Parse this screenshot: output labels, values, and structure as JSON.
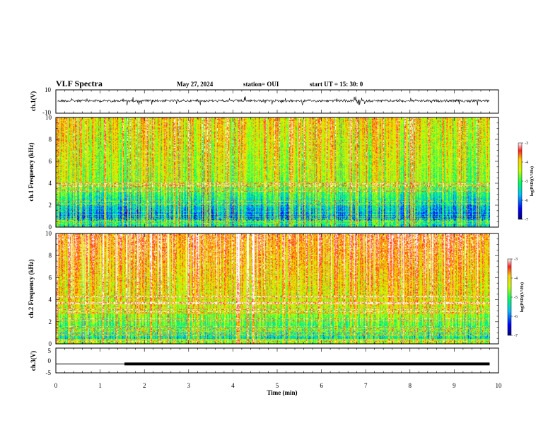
{
  "header": {
    "title": "VLF Spectra",
    "date": "May 27, 2024",
    "station": "station= OUI",
    "start_ut": "start  UT  =   15: 30: 0"
  },
  "chart_data": [
    {
      "type": "line",
      "panel": "ch1-waveform",
      "ylabel": "ch.1(V)",
      "ylim": [
        -10,
        10
      ],
      "ytick_labels": [
        "10",
        "-10"
      ],
      "x_range_min": [
        0,
        9.8
      ],
      "baseline_value": 0,
      "description_values": "dense noisy waveform around 0 V with spikes to about ±6 V"
    },
    {
      "type": "heatmap",
      "panel": "ch1-spectrogram",
      "ylabel": "ch.1 Frequency (kHz)",
      "xlim": [
        0,
        10
      ],
      "ylim": [
        0,
        10
      ],
      "data_end_min": 9.8,
      "ytick_labels": [
        "0",
        "2",
        "4",
        "6",
        "8",
        "10"
      ],
      "colorbar": {
        "min": -7,
        "max": -3,
        "ticks": [
          "-3",
          "-4",
          "-5",
          "-6",
          "-7"
        ],
        "label": "log(PSD)(V²/Hz)"
      }
    },
    {
      "type": "heatmap",
      "panel": "ch2-spectrogram",
      "ylabel": "ch.2 Frequency (kHz)",
      "xlim": [
        0,
        10
      ],
      "ylim": [
        0,
        10
      ],
      "data_end_min": 9.8,
      "ytick_labels": [
        "0",
        "2",
        "4",
        "6",
        "8",
        "10"
      ],
      "colorbar": {
        "min": -7,
        "max": -3,
        "ticks": [
          "-3",
          "-4",
          "-5",
          "-6",
          "-7"
        ],
        "label": "log(PSD)(V²/Hz)"
      }
    },
    {
      "type": "line",
      "panel": "ch3-waveform",
      "ylabel": "ch.3(V)",
      "ylim": [
        -5,
        5
      ],
      "ytick_labels": [
        "5",
        "0",
        "-5"
      ],
      "x": [
        0,
        1.55,
        1.55,
        9.8
      ],
      "y": [
        -1.4,
        -1.4,
        -1.4,
        -1.4
      ],
      "thick_from_min": 1.55
    }
  ],
  "x_axis": {
    "label": "Time  (min)",
    "ticks": [
      "0",
      "1",
      "2",
      "3",
      "4",
      "5",
      "6",
      "7",
      "8",
      "9",
      "10"
    ]
  },
  "colors": {
    "axis": "#000000",
    "waveform": "#000000"
  }
}
